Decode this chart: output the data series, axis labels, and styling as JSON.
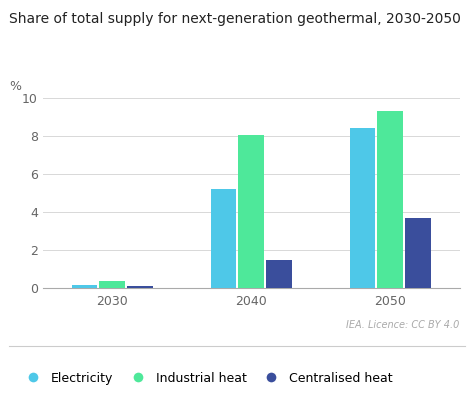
{
  "title": "Share of total supply for next-generation geothermal, 2030-2050",
  "ylabel": "%",
  "years": [
    "2030",
    "2040",
    "2050"
  ],
  "series": {
    "Electricity": [
      0.15,
      5.2,
      8.4
    ],
    "Industrial heat": [
      0.35,
      8.05,
      9.3
    ],
    "Centralised heat": [
      0.1,
      1.45,
      3.65
    ]
  },
  "colors": {
    "Electricity": "#4EC8E8",
    "Industrial heat": "#4EE89A",
    "Centralised heat": "#3A4E9C"
  },
  "ylim": [
    0,
    10.5
  ],
  "yticks": [
    0,
    2,
    4,
    6,
    8,
    10
  ],
  "bar_width": 0.2,
  "background_color": "#FFFFFF",
  "grid_color": "#D8D8D8",
  "license_text": "IEA. Licence: CC BY 4.0",
  "title_fontsize": 10,
  "tick_fontsize": 9,
  "legend_fontsize": 9
}
